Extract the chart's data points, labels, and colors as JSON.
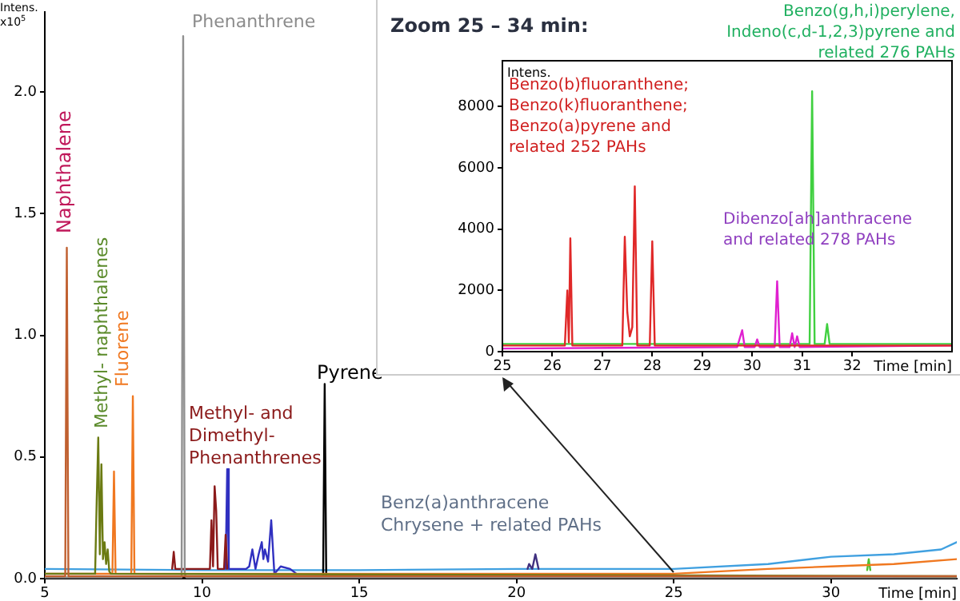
{
  "chart_data": [
    {
      "type": "line",
      "ylabel": "Intens.\nx10$^{5}$",
      "xlabel": "Time [min]",
      "xlim": [
        5,
        34
      ],
      "ylim": [
        0,
        2.33
      ],
      "xticks": [
        5,
        10,
        15,
        20,
        25,
        30
      ],
      "yticks": [
        {
          "value": 0,
          "label": "0.0"
        },
        {
          "value": 0.5,
          "label": "0.5"
        },
        {
          "value": 1,
          "label": "1.0"
        },
        {
          "value": 1.5,
          "label": "1.5"
        },
        {
          "value": 2,
          "label": "2.0"
        }
      ],
      "grid": false,
      "legend": false,
      "marker": "none",
      "line_style": "solid",
      "series": [
        {
          "color": "#c06030",
          "x": [
            5,
            5.65,
            5.7,
            5.75,
            34
          ],
          "values": [
            0.01,
            0.01,
            1.36,
            0.01,
            0.01
          ]
        },
        {
          "color": "#6b7b12",
          "x": [
            5,
            6.6,
            6.65,
            6.7,
            6.75,
            6.8,
            6.85,
            6.9,
            6.95,
            7.0,
            7.05,
            7.1,
            34
          ],
          "values": [
            0.02,
            0.02,
            0.32,
            0.58,
            0.1,
            0.47,
            0.08,
            0.15,
            0.06,
            0.12,
            0.03,
            0.02,
            0.01
          ]
        },
        {
          "color": "#f07820",
          "x": [
            5,
            7.15,
            7.2,
            7.25,
            7.75,
            7.8,
            7.85,
            15,
            20,
            25,
            28,
            30,
            32,
            34
          ],
          "values": [
            0.02,
            0.02,
            0.44,
            0.02,
            0.02,
            0.75,
            0.02,
            0.02,
            0.02,
            0.02,
            0.04,
            0.05,
            0.06,
            0.08
          ]
        },
        {
          "color": "#909090",
          "x": [
            5,
            9.35,
            9.4,
            9.45,
            9.5,
            34
          ],
          "values": [
            0.005,
            0.005,
            2.23,
            0.02,
            0.005,
            0.005
          ]
        },
        {
          "color": "#8b1a1a",
          "x": [
            9.05,
            9.1,
            9.15,
            10.25,
            10.3,
            10.35,
            10.4,
            10.45,
            10.5,
            10.7,
            10.75,
            10.8
          ],
          "values": [
            0.04,
            0.11,
            0.04,
            0.04,
            0.24,
            0.05,
            0.38,
            0.28,
            0.04,
            0.04,
            0.18,
            0.04
          ]
        },
        {
          "color": "#3030c0",
          "x": [
            10.75,
            10.8,
            10.85,
            11.4,
            11.5,
            11.6,
            11.7,
            11.8,
            11.9,
            11.95,
            12.0,
            12.1,
            12.2,
            12.3,
            12.5,
            12.8,
            13
          ],
          "values": [
            0.04,
            0.45,
            0.04,
            0.04,
            0.05,
            0.12,
            0.04,
            0.1,
            0.15,
            0.08,
            0.12,
            0.07,
            0.24,
            0.02,
            0.05,
            0.04,
            0.02
          ]
        },
        {
          "color": "#000000",
          "x": [
            5,
            13.85,
            13.9,
            13.95,
            34
          ],
          "values": [
            0.003,
            0.003,
            0.8,
            0.003,
            0.003
          ]
        },
        {
          "color": "#403080",
          "x": [
            20.35,
            20.4,
            20.5,
            20.6,
            20.7
          ],
          "values": [
            0.04,
            0.06,
            0.04,
            0.1,
            0.04
          ]
        },
        {
          "color": "#50c030",
          "x": [
            31.15,
            31.2,
            31.25
          ],
          "values": [
            0.035,
            0.08,
            0.035
          ]
        },
        {
          "color": "#40a0e0",
          "x": [
            5,
            10,
            15,
            20,
            25,
            28,
            30,
            32,
            33.5,
            34
          ],
          "values": [
            0.04,
            0.035,
            0.035,
            0.04,
            0.04,
            0.06,
            0.09,
            0.1,
            0.12,
            0.15
          ]
        }
      ],
      "annotations": [
        "Naphthalene",
        "Methyl- naphthalenes",
        "Fluorene",
        "Phenanthrene",
        "Methyl- and\nDimethyl-\nPhenanthrenes",
        "Pyrene",
        "Benz(a)anthracene\nChrysene + related PAHs"
      ]
    },
    {
      "type": "line",
      "title": "Zoom 25 – 34 min:",
      "ylabel": "Intens.",
      "xlabel": "Time [min]",
      "xlim": [
        25,
        34
      ],
      "ylim": [
        0,
        9500
      ],
      "xticks": [
        25,
        26,
        27,
        28,
        29,
        30,
        31,
        32
      ],
      "yticks": [
        0,
        2000,
        4000,
        6000,
        8000
      ],
      "grid": false,
      "legend": false,
      "marker": "none",
      "line_style": "solid",
      "series": [
        {
          "color": "#e02828",
          "x": [
            25,
            26.25,
            26.3,
            26.33,
            26.36,
            26.4,
            27.4,
            27.45,
            27.5,
            27.55,
            27.6,
            27.65,
            27.7,
            27.95,
            28.0,
            28.05,
            34
          ],
          "values": [
            200,
            200,
            2000,
            300,
            3700,
            200,
            200,
            3750,
            1300,
            500,
            800,
            5400,
            200,
            200,
            3600,
            200,
            200
          ]
        },
        {
          "color": "#e020d0",
          "x": [
            25,
            29.7,
            29.8,
            29.85,
            30.05,
            30.1,
            30.15,
            30.45,
            30.5,
            30.55,
            30.75,
            30.8,
            30.85,
            30.9,
            30.95,
            34
          ],
          "values": [
            100,
            150,
            700,
            150,
            150,
            400,
            150,
            150,
            2300,
            150,
            150,
            600,
            150,
            500,
            150,
            200
          ]
        },
        {
          "color": "#40d040",
          "x": [
            25,
            31.15,
            31.2,
            31.25,
            31.45,
            31.5,
            31.55,
            34
          ],
          "values": [
            250,
            250,
            8500,
            250,
            250,
            900,
            250,
            250
          ]
        }
      ],
      "annotations": [
        "Benzo(b)fluoranthene;\nBenzo(k)fluoranthene;\nBenzo(a)pyrene and\nrelated 252 PAHs",
        "Dibenzo[ah]anthracene\nand related 278 PAHs",
        "Benzo(g,h,i)perylene,\nIndeno(c,d-1,2,3)pyrene and\nrelated 276 PAHs"
      ]
    }
  ]
}
